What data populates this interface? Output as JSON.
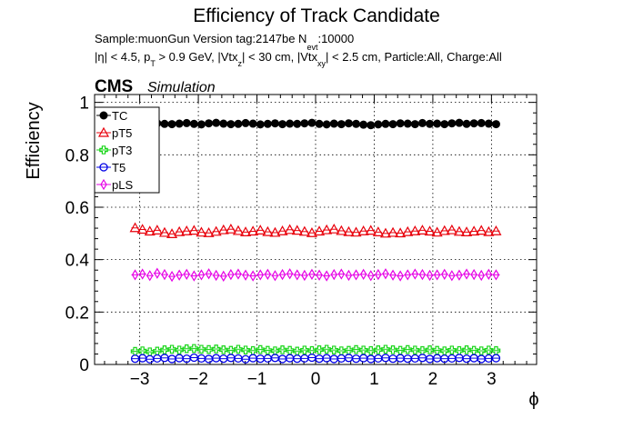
{
  "chart_data": {
    "type": "scatter",
    "title": "Efficiency of Track Candidate",
    "info": {
      "sample_prefix": "Sample:muonGun   Version tag:2147be  N",
      "nevt_sub": "evt",
      "nevt_value": ":10000",
      "cut_a": "|η| < 4.5, p",
      "cut_a_sub": "T",
      "cut_b": " > 0.9 GeV, |Vtx",
      "cut_b_sub": "z",
      "cut_c": "| < 30 cm, |Vtx",
      "cut_c_sub": "xy",
      "cut_d": "| < 2.5 cm, Particle:All, Charge:All"
    },
    "cms_label": "CMS",
    "simulation_label": "Simulation",
    "xlabel": "ϕ",
    "ylabel": "Efficiency",
    "xlim": [
      -3.77,
      3.77
    ],
    "ylim": [
      0,
      1.03
    ],
    "x_ticks": [
      -3,
      -2,
      -1,
      0,
      1,
      2,
      3
    ],
    "x_tick_labels": [
      "−3",
      "−2",
      "−1",
      "0",
      "1",
      "2",
      "3"
    ],
    "y_ticks": [
      0,
      0.2,
      0.4,
      0.6,
      0.8,
      1
    ],
    "y_tick_labels": [
      "0",
      "0.2",
      "0.4",
      "0.6",
      "0.8",
      "1"
    ],
    "grid": true,
    "legend_position": "top-left",
    "bins": {
      "min": -3.1416,
      "max": 3.1416,
      "count": 50
    },
    "series": [
      {
        "name": "TC",
        "color": "#000000",
        "marker": "filled-circle",
        "values": [
          0.918,
          0.919,
          0.915,
          0.92,
          0.918,
          0.917,
          0.919,
          0.921,
          0.918,
          0.916,
          0.92,
          0.922,
          0.919,
          0.917,
          0.918,
          0.921,
          0.919,
          0.916,
          0.918,
          0.92,
          0.917,
          0.919,
          0.918,
          0.92,
          0.922,
          0.918,
          0.916,
          0.919,
          0.917,
          0.92,
          0.918,
          0.915,
          0.913,
          0.916,
          0.918,
          0.917,
          0.92,
          0.919,
          0.917,
          0.921,
          0.918,
          0.919,
          0.917,
          0.92,
          0.922,
          0.918,
          0.92,
          0.921,
          0.919,
          0.917
        ]
      },
      {
        "name": "pT5",
        "color": "#e8000b",
        "marker": "open-triangle",
        "values": [
          0.521,
          0.515,
          0.508,
          0.512,
          0.503,
          0.498,
          0.506,
          0.509,
          0.511,
          0.504,
          0.502,
          0.507,
          0.513,
          0.516,
          0.51,
          0.505,
          0.508,
          0.512,
          0.506,
          0.503,
          0.509,
          0.514,
          0.511,
          0.507,
          0.502,
          0.508,
          0.513,
          0.516,
          0.51,
          0.506,
          0.504,
          0.509,
          0.511,
          0.505,
          0.5,
          0.503,
          0.501,
          0.506,
          0.509,
          0.512,
          0.508,
          0.504,
          0.51,
          0.513,
          0.507,
          0.505,
          0.508,
          0.511,
          0.506,
          0.509
        ]
      },
      {
        "name": "pT3",
        "color": "#18d518",
        "marker": "open-cross",
        "values": [
          0.05,
          0.052,
          0.048,
          0.051,
          0.056,
          0.058,
          0.055,
          0.06,
          0.061,
          0.058,
          0.057,
          0.059,
          0.056,
          0.054,
          0.058,
          0.055,
          0.053,
          0.057,
          0.054,
          0.052,
          0.056,
          0.054,
          0.051,
          0.055,
          0.053,
          0.056,
          0.058,
          0.055,
          0.052,
          0.054,
          0.057,
          0.055,
          0.053,
          0.056,
          0.058,
          0.056,
          0.054,
          0.057,
          0.055,
          0.053,
          0.056,
          0.054,
          0.052,
          0.055,
          0.053,
          0.056,
          0.054,
          0.052,
          0.055,
          0.053
        ]
      },
      {
        "name": "T5",
        "color": "#0000e6",
        "marker": "open-circle",
        "values": [
          0.022,
          0.024,
          0.02,
          0.023,
          0.025,
          0.021,
          0.024,
          0.022,
          0.026,
          0.023,
          0.021,
          0.024,
          0.022,
          0.025,
          0.023,
          0.02,
          0.024,
          0.022,
          0.023,
          0.025,
          0.021,
          0.024,
          0.022,
          0.023,
          0.026,
          0.022,
          0.024,
          0.021,
          0.023,
          0.025,
          0.022,
          0.024,
          0.021,
          0.023,
          0.025,
          0.022,
          0.024,
          0.022,
          0.023,
          0.025,
          0.021,
          0.024,
          0.022,
          0.023,
          0.025,
          0.022,
          0.024,
          0.021,
          0.023,
          0.024
        ]
      },
      {
        "name": "pLS",
        "color": "#e600e6",
        "marker": "open-diamond",
        "values": [
          0.342,
          0.345,
          0.339,
          0.348,
          0.343,
          0.336,
          0.341,
          0.344,
          0.338,
          0.342,
          0.346,
          0.34,
          0.337,
          0.343,
          0.345,
          0.341,
          0.338,
          0.342,
          0.344,
          0.339,
          0.343,
          0.346,
          0.342,
          0.34,
          0.344,
          0.341,
          0.338,
          0.343,
          0.345,
          0.34,
          0.342,
          0.344,
          0.339,
          0.343,
          0.346,
          0.341,
          0.338,
          0.342,
          0.345,
          0.343,
          0.34,
          0.342,
          0.344,
          0.339,
          0.341,
          0.345,
          0.343,
          0.34,
          0.344,
          0.342
        ]
      }
    ]
  }
}
